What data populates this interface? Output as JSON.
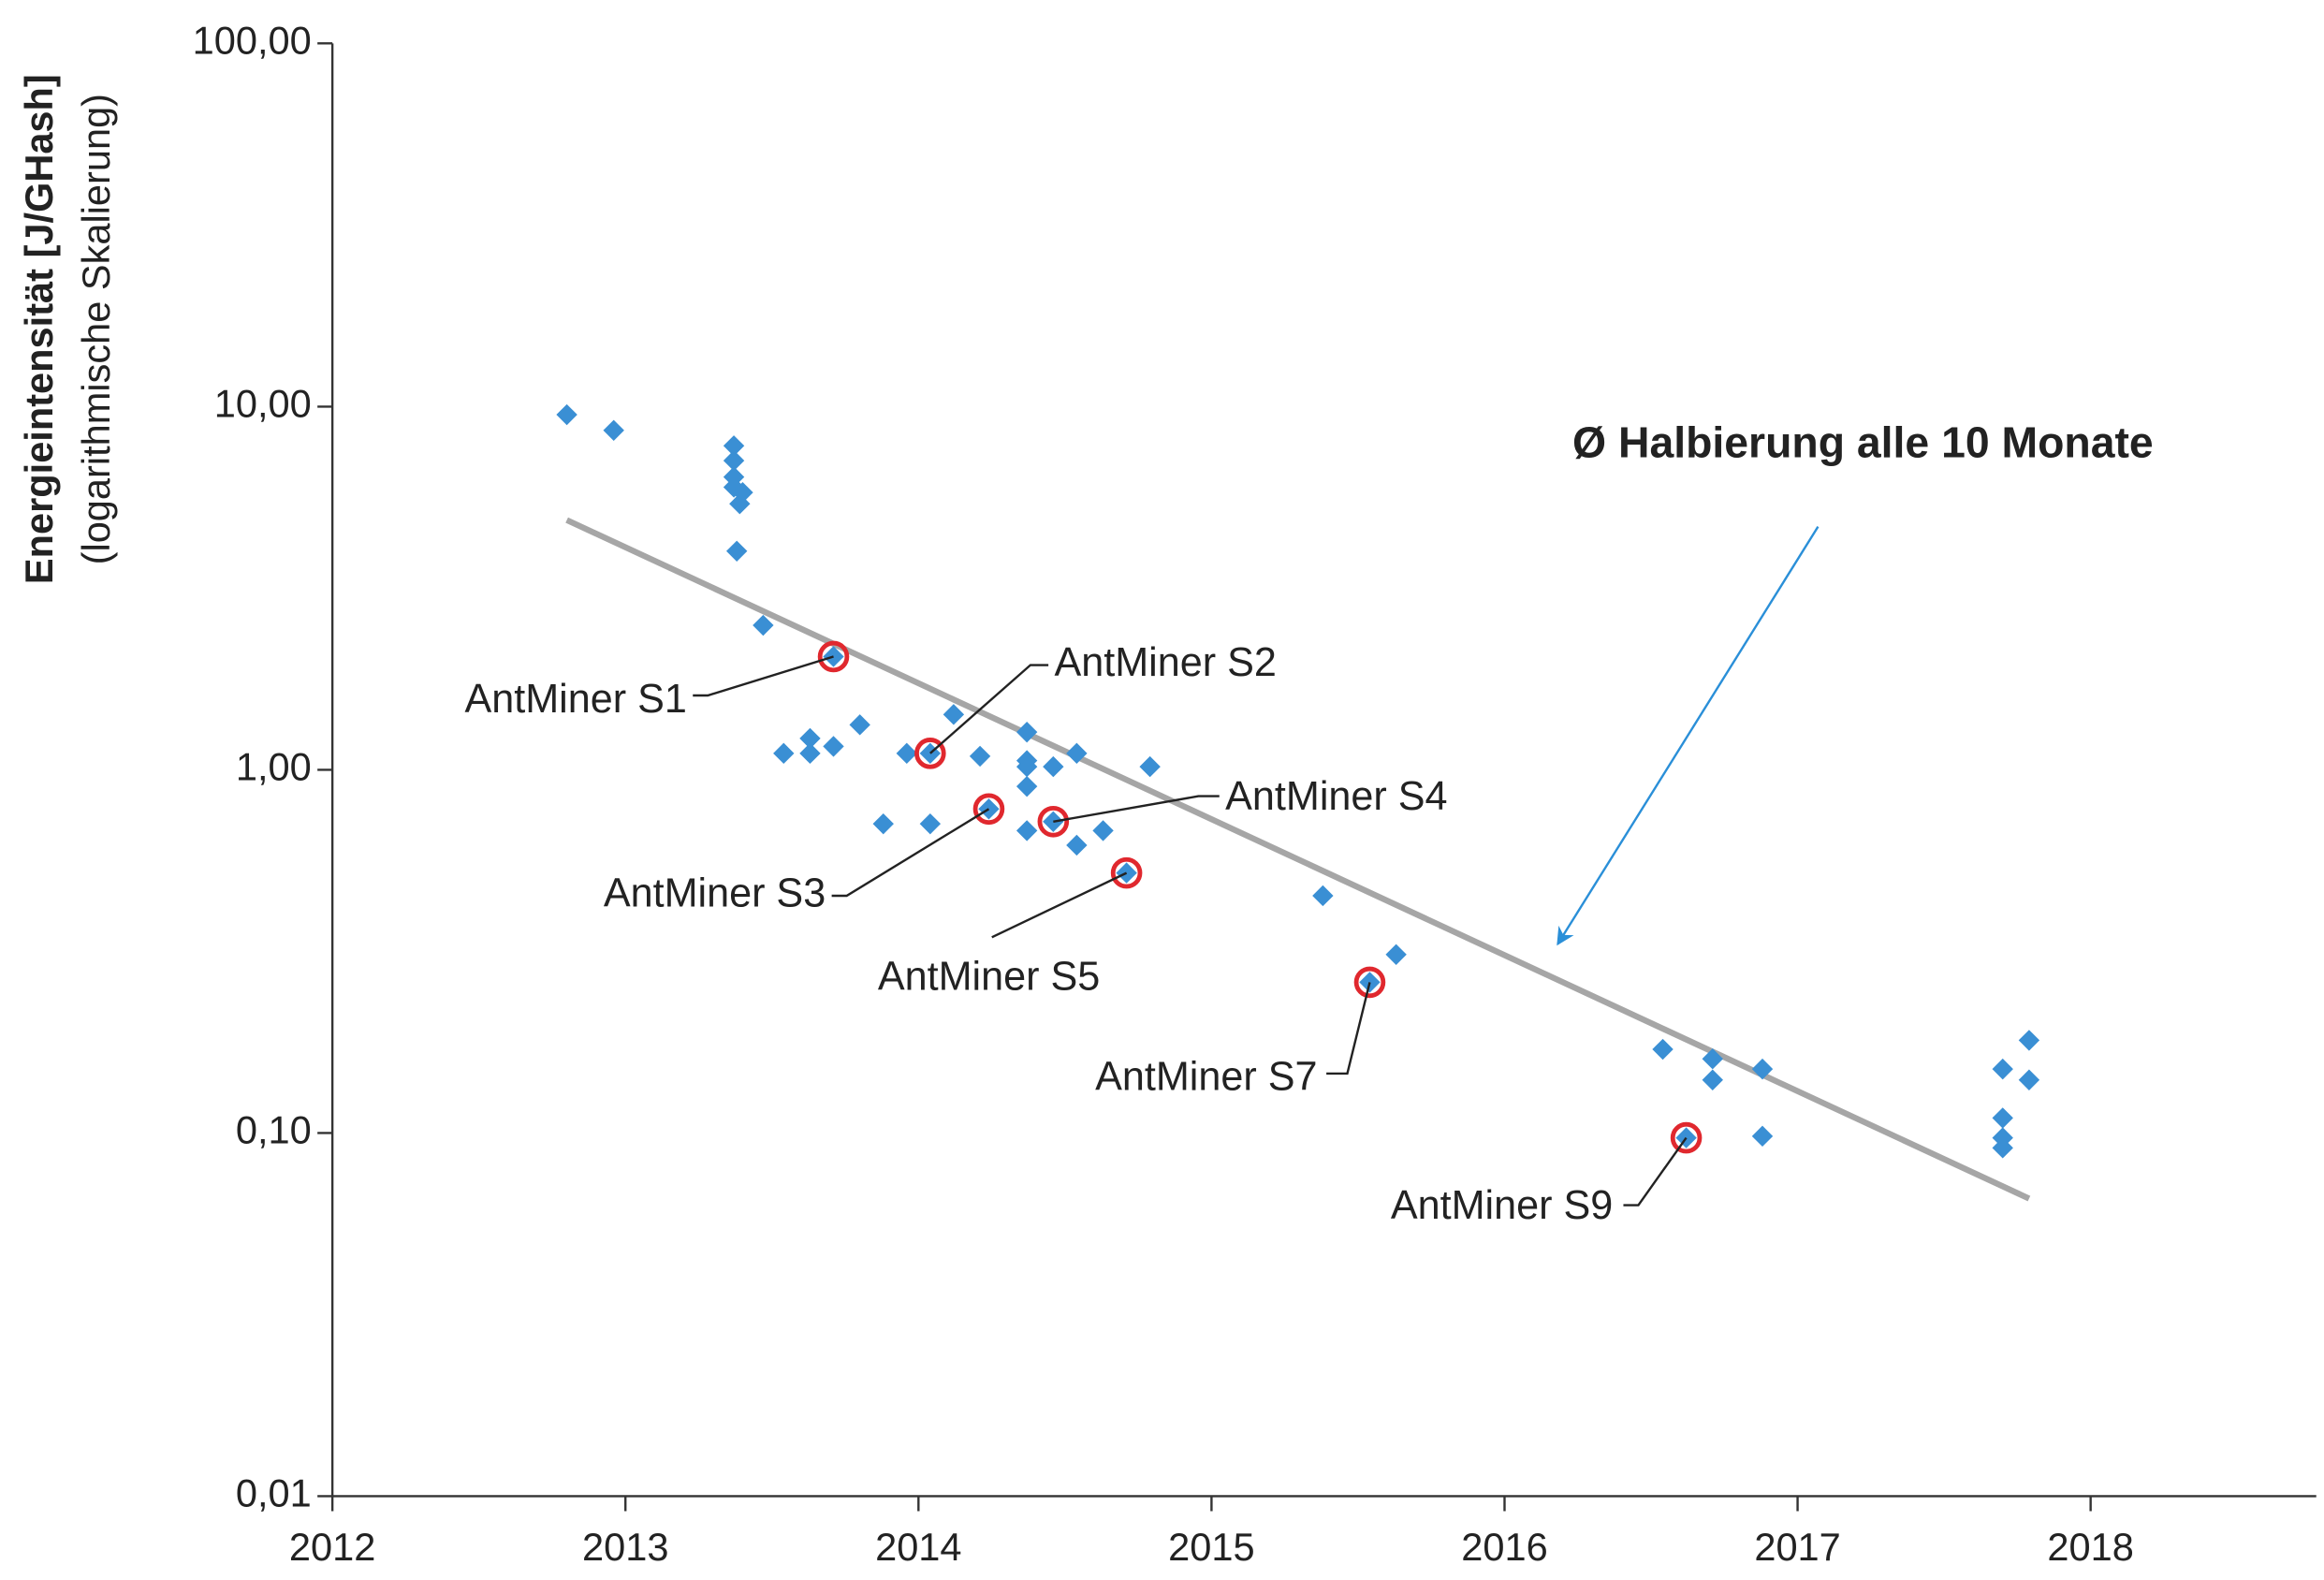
{
  "chart_data": {
    "type": "scatter",
    "y_label": "Energieintensität [J/GHash]",
    "y_sublabel": "(logarithmische Skalierung)",
    "annotation": "Ø Halbierung alle 10 Monate",
    "log_y": true,
    "xlim": [
      2012,
      2018.77
    ],
    "xticks": [
      2012,
      2013,
      2014,
      2015,
      2016,
      2017,
      2018
    ],
    "ylim": [
      0.01,
      100
    ],
    "yticks": [
      {
        "value": 0.01,
        "label": "0,01"
      },
      {
        "value": 0.1,
        "label": "0,10"
      },
      {
        "value": 1,
        "label": "1,00"
      },
      {
        "value": 10,
        "label": "10,00"
      },
      {
        "value": 100,
        "label": "100,00"
      }
    ],
    "series": [
      {
        "type": "scatter",
        "color": "#3a8fd4",
        "x": [
          2012.8,
          2012.96,
          2013.37,
          2013.37,
          2013.37,
          2013.37,
          2013.4,
          2013.39,
          2013.38,
          2013.47,
          2013.54,
          2013.63,
          2013.63,
          2013.71,
          2013.8,
          2013.88,
          2013.96,
          2014.04,
          2014.12,
          2014.21,
          2014.37,
          2014.37,
          2014.37,
          2014.37,
          2014.37,
          2014.46,
          2014.54,
          2014.54,
          2014.63,
          2014.79,
          2015.38,
          2015.63,
          2016.54,
          2016.71,
          2016.71,
          2016.88,
          2016.88,
          2017.7,
          2017.7,
          2017.7,
          2017.7,
          2017.79,
          2017.79
        ],
        "values": [
          9.5,
          8.6,
          7.8,
          7.1,
          6.4,
          6.0,
          5.8,
          5.4,
          4.0,
          2.5,
          1.11,
          1.22,
          1.11,
          1.16,
          1.33,
          0.71,
          1.11,
          0.71,
          1.42,
          1.09,
          1.27,
          1.06,
          1.02,
          0.9,
          0.68,
          1.02,
          1.11,
          0.62,
          0.68,
          1.02,
          0.45,
          0.31,
          0.17,
          0.16,
          0.14,
          0.15,
          0.098,
          0.15,
          0.11,
          0.097,
          0.091,
          0.18,
          0.14
        ]
      },
      {
        "type": "highlight",
        "color": "#3a8fd4",
        "ring_color": "#e0282e",
        "x": [
          2013.71,
          2014.04,
          2014.24,
          2014.46,
          2014.71,
          2015.54,
          2016.62
        ],
        "values": [
          2.05,
          1.11,
          0.78,
          0.72,
          0.52,
          0.26,
          0.097
        ],
        "point_labels": [
          "AntMiner S1",
          "AntMiner S2",
          "AntMiner S3",
          "AntMiner S4",
          "AntMiner S5",
          "AntMiner S7",
          "AntMiner S9"
        ]
      },
      {
        "type": "line",
        "color": "#a6a6a6",
        "x": [
          2012.8,
          2017.79
        ],
        "values": [
          4.87,
          0.066
        ]
      }
    ]
  }
}
